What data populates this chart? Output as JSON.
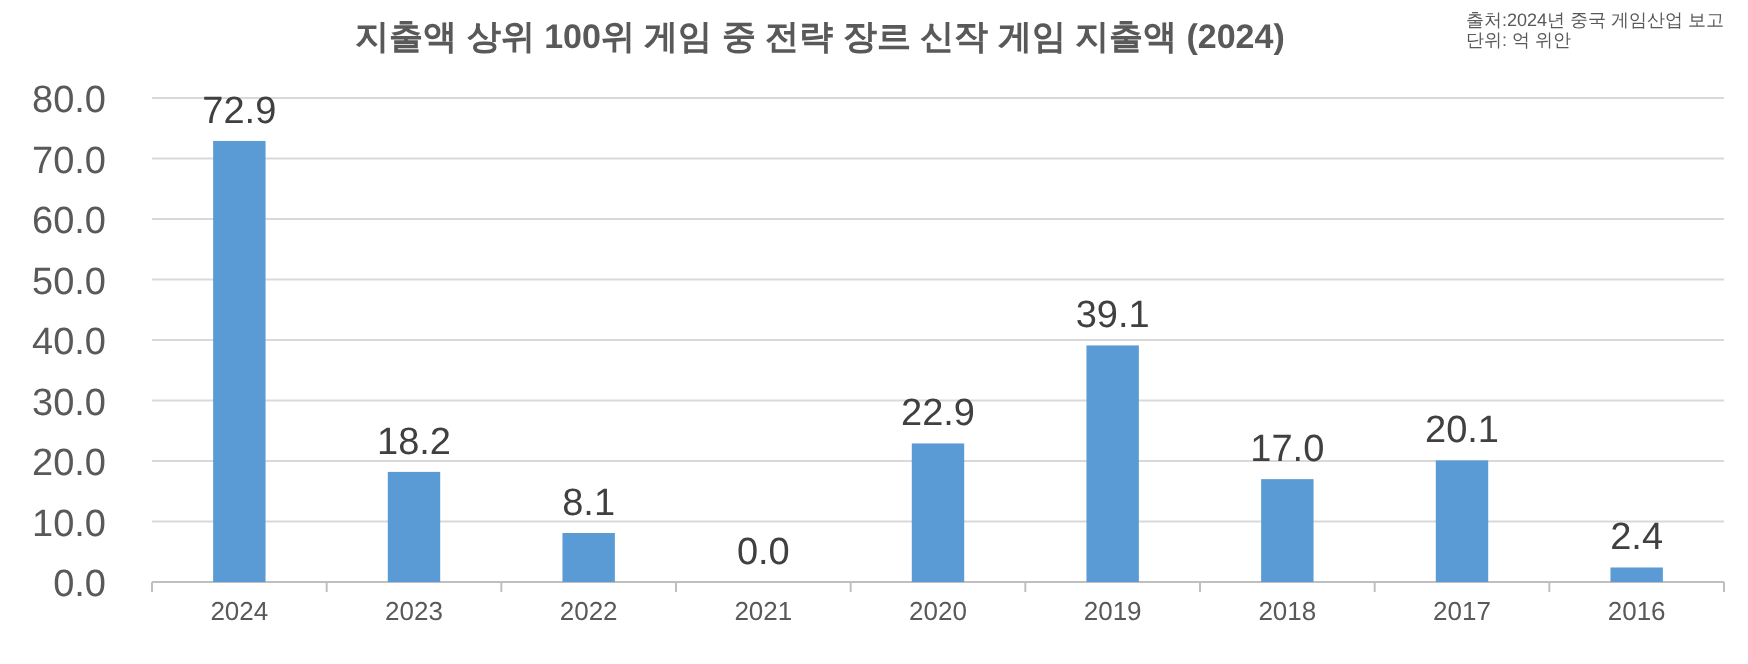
{
  "chart_data": {
    "type": "bar",
    "title": "지출액 상위 100위 게임 중 전략 장르 신작 게임 지출액 (2024)",
    "annotations": [
      "출처:2024년 중국 게임산업 보고",
      "단위: 억 위안"
    ],
    "categories": [
      "2024",
      "2023",
      "2022",
      "2021",
      "2020",
      "2019",
      "2018",
      "2017",
      "2016"
    ],
    "values": [
      72.9,
      18.2,
      8.1,
      0.0,
      22.9,
      39.1,
      17.0,
      20.1,
      2.4
    ],
    "value_labels": [
      "72.9",
      "18.2",
      "8.1",
      "0.0",
      "22.9",
      "39.1",
      "17.0",
      "20.1",
      "2.4"
    ],
    "color": "#5b9bd5",
    "ylim": [
      0,
      80
    ],
    "yticks": [
      {
        "value": 0,
        "label": "0.0"
      },
      {
        "value": 10,
        "label": "10.0"
      },
      {
        "value": 20,
        "label": "20.0"
      },
      {
        "value": 30,
        "label": "30.0"
      },
      {
        "value": 40,
        "label": "40.0"
      },
      {
        "value": 50,
        "label": "50.0"
      },
      {
        "value": 60,
        "label": "60.0"
      },
      {
        "value": 70,
        "label": "70.0"
      },
      {
        "value": 80,
        "label": "80.0"
      }
    ],
    "grid": "y"
  }
}
